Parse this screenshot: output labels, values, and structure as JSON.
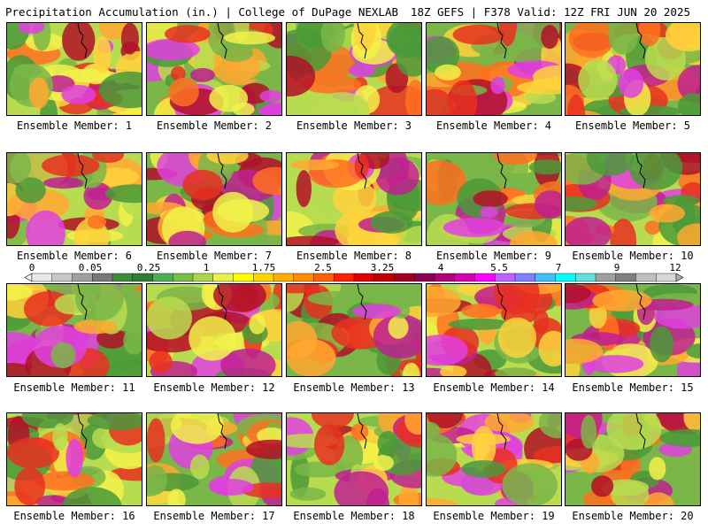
{
  "header": {
    "left": "Precipitation Accumulation (in.) | College of DuPage NEXLAB",
    "right": "18Z GEFS | F378 Valid: 12Z FRI JUN 20 2025"
  },
  "members": [
    "Ensemble Member: 1",
    "Ensemble Member: 2",
    "Ensemble Member: 3",
    "Ensemble Member: 4",
    "Ensemble Member: 5",
    "Ensemble Member: 6",
    "Ensemble Member: 7",
    "Ensemble Member: 8",
    "Ensemble Member: 9",
    "Ensemble Member: 10",
    "Ensemble Member: 11",
    "Ensemble Member: 12",
    "Ensemble Member: 13",
    "Ensemble Member: 14",
    "Ensemble Member: 15",
    "Ensemble Member: 16",
    "Ensemble Member: 17",
    "Ensemble Member: 18",
    "Ensemble Member: 19",
    "Ensemble Member: 20"
  ],
  "colorbar": {
    "labels": [
      "0",
      "0.05",
      "0.25",
      "1",
      "1.75",
      "2.5",
      "3.25",
      "4",
      "5.5",
      "7",
      "9",
      "12"
    ],
    "colors": [
      "#e8e8e8",
      "#c8c8c8",
      "#a0a0a0",
      "#787878",
      "#3c8c3c",
      "#2e7d32",
      "#4caf50",
      "#76c043",
      "#a8d84a",
      "#e8f04a",
      "#ffff00",
      "#ffd800",
      "#ffb000",
      "#ff8c00",
      "#ff6000",
      "#ff2000",
      "#e00000",
      "#c00000",
      "#a00020",
      "#8b0050",
      "#b0007a",
      "#d000b0",
      "#ff00ff",
      "#c060ff",
      "#8080ff",
      "#40c0ff",
      "#00ffff",
      "#60e0e0",
      "#a0a0a0",
      "#808080",
      "#c0c0c0",
      "#d8d8d8"
    ]
  }
}
